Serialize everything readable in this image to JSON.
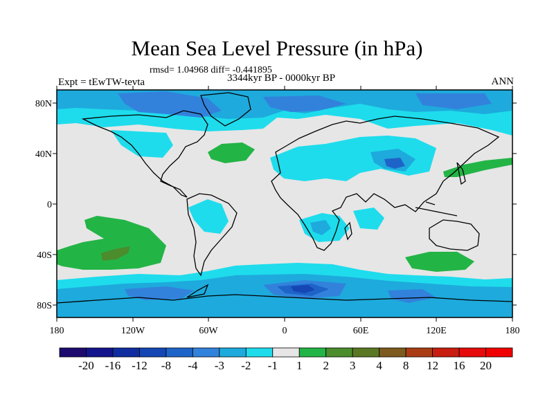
{
  "title": "Mean Sea Level Pressure (in hPa)",
  "stats": "rmsd= 1.04968 diff= -0.441895",
  "experiment": "Expt = tEwTW-tevta",
  "period": "3344kyr BP - 0000kyr BP",
  "season": "ANN",
  "axes": {
    "lat_labels": [
      "80N",
      "40N",
      "0",
      "40S",
      "80S"
    ],
    "lon_labels": [
      "180",
      "120W",
      "60W",
      "0",
      "60E",
      "120E",
      "180"
    ]
  },
  "colorbar": {
    "labels": [
      "-20",
      "-16",
      "-12",
      "-8",
      "-4",
      "-3",
      "-2",
      "-1",
      "1",
      "2",
      "3",
      "4",
      "8",
      "12",
      "16",
      "20"
    ],
    "colors": [
      "#1e0a6e",
      "#14148c",
      "#0f2da0",
      "#1446b4",
      "#1e64c8",
      "#3282dc",
      "#1eaadc",
      "#1edcec",
      "#e6e6e6",
      "#23b446",
      "#4b8c2d",
      "#5a7823",
      "#7d5a1e",
      "#aa3c14",
      "#c81e0f",
      "#e60a0a",
      "#f00000"
    ]
  },
  "map_colors": {
    "neutral": "#e6e6e6",
    "lightblue": "#1edcec",
    "midblue": "#1eaadc",
    "blue": "#3282dc",
    "darkblue": "#1e64c8",
    "navy": "#1446b4",
    "green": "#23b446",
    "olive": "#4b8c2d",
    "coast": "#000000"
  }
}
